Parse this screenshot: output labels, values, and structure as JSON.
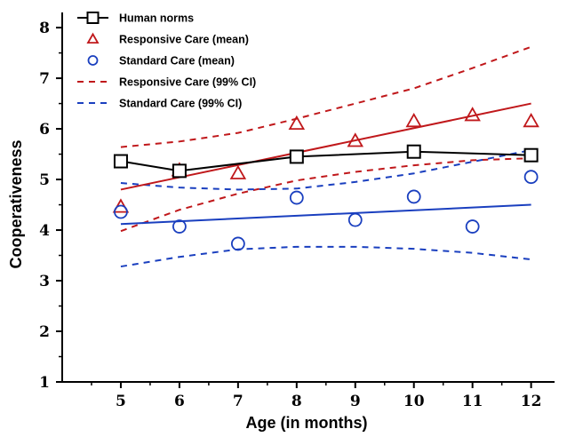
{
  "chart_data": {
    "type": "line",
    "xlabel": "Age (in months)",
    "ylabel": "Cooperativeness",
    "xlim": [
      4,
      12.4
    ],
    "ylim": [
      1,
      8.3
    ],
    "x_ticks": [
      5,
      6,
      7,
      8,
      9,
      10,
      11,
      12
    ],
    "y_ticks": [
      1,
      2,
      3,
      4,
      5,
      6,
      7,
      8
    ],
    "grid": false,
    "legend_position": "top-left",
    "series": [
      {
        "name": "Human norms",
        "kind": "line-marker",
        "marker": "square",
        "color": "#000000",
        "x": [
          5,
          6,
          8,
          10,
          12
        ],
        "y": [
          5.36,
          5.17,
          5.45,
          5.55,
          5.48
        ]
      },
      {
        "name": "Responsive Care (mean)",
        "kind": "marker",
        "marker": "triangle",
        "color": "#c0181b",
        "x": [
          5,
          6,
          7,
          8,
          9,
          10,
          11,
          12
        ],
        "y": [
          4.46,
          5.18,
          5.12,
          6.1,
          5.76,
          6.15,
          6.27,
          6.15
        ],
        "fit": {
          "x": [
            5,
            12
          ],
          "y": [
            4.8,
            6.5
          ]
        }
      },
      {
        "name": "Standard Care (mean)",
        "kind": "marker",
        "marker": "circle",
        "color": "#1a3fbf",
        "x": [
          5,
          6,
          7,
          8,
          9,
          10,
          11,
          12
        ],
        "y": [
          4.36,
          4.07,
          3.73,
          4.64,
          4.2,
          4.66,
          4.07,
          5.05
        ],
        "fit": {
          "x": [
            5,
            12
          ],
          "y": [
            4.12,
            4.5
          ]
        }
      },
      {
        "name": "Responsive Care (99% CI)",
        "kind": "dashed",
        "color": "#c0181b",
        "bands": [
          {
            "x": [
              5,
              6,
              7,
              8,
              9,
              10,
              11,
              12
            ],
            "y": [
              5.64,
              5.75,
              5.92,
              6.2,
              6.5,
              6.8,
              7.2,
              7.62
            ]
          },
          {
            "x": [
              5,
              6,
              7,
              8,
              9,
              10,
              11,
              12
            ],
            "y": [
              3.98,
              4.4,
              4.72,
              4.98,
              5.15,
              5.28,
              5.38,
              5.42
            ]
          }
        ]
      },
      {
        "name": "Standard Care (99% CI)",
        "kind": "dashed",
        "color": "#1a3fbf",
        "bands": [
          {
            "x": [
              5,
              6,
              7,
              8,
              9,
              10,
              11,
              12
            ],
            "y": [
              4.93,
              4.84,
              4.8,
              4.82,
              4.95,
              5.12,
              5.35,
              5.58
            ]
          },
          {
            "x": [
              5,
              6,
              7,
              8,
              9,
              10,
              11,
              12
            ],
            "y": [
              3.28,
              3.47,
              3.62,
              3.67,
              3.67,
              3.63,
              3.55,
              3.42
            ]
          }
        ]
      }
    ]
  }
}
